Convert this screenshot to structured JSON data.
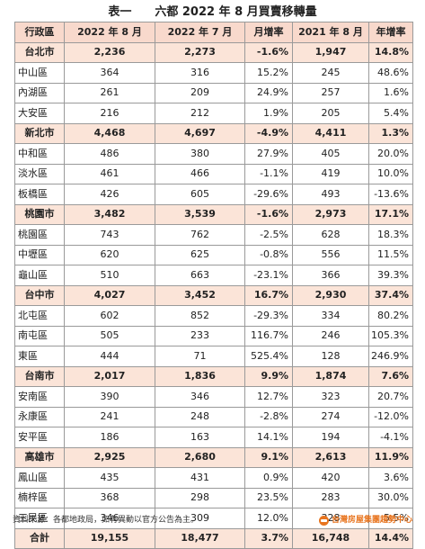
{
  "title": "表一　　六都 2022 年 8 月買賣移轉量",
  "columns": [
    "行政區",
    "2022 年 8 月",
    "2022 年 7 月",
    "月增率",
    "2021 年 8 月",
    "年增率"
  ],
  "rows": [
    {
      "region": "台北市",
      "aug2022": "2,236",
      "jul2022": "2,273",
      "mom": "-1.6%",
      "aug2021": "1,947",
      "yoy": "14.8%",
      "city": true
    },
    {
      "region": "中山區",
      "aug2022": "364",
      "jul2022": "316",
      "mom": "15.2%",
      "aug2021": "245",
      "yoy": "48.6%",
      "city": false
    },
    {
      "region": "內湖區",
      "aug2022": "261",
      "jul2022": "209",
      "mom": "24.9%",
      "aug2021": "257",
      "yoy": "1.6%",
      "city": false
    },
    {
      "region": "大安區",
      "aug2022": "216",
      "jul2022": "212",
      "mom": "1.9%",
      "aug2021": "205",
      "yoy": "5.4%",
      "city": false
    },
    {
      "region": "新北市",
      "aug2022": "4,468",
      "jul2022": "4,697",
      "mom": "-4.9%",
      "aug2021": "4,411",
      "yoy": "1.3%",
      "city": true
    },
    {
      "region": "中和區",
      "aug2022": "486",
      "jul2022": "380",
      "mom": "27.9%",
      "aug2021": "405",
      "yoy": "20.0%",
      "city": false
    },
    {
      "region": "淡水區",
      "aug2022": "461",
      "jul2022": "466",
      "mom": "-1.1%",
      "aug2021": "419",
      "yoy": "10.0%",
      "city": false
    },
    {
      "region": "板橋區",
      "aug2022": "426",
      "jul2022": "605",
      "mom": "-29.6%",
      "aug2021": "493",
      "yoy": "-13.6%",
      "city": false
    },
    {
      "region": "桃園市",
      "aug2022": "3,482",
      "jul2022": "3,539",
      "mom": "-1.6%",
      "aug2021": "2,973",
      "yoy": "17.1%",
      "city": true
    },
    {
      "region": "桃園區",
      "aug2022": "743",
      "jul2022": "762",
      "mom": "-2.5%",
      "aug2021": "628",
      "yoy": "18.3%",
      "city": false
    },
    {
      "region": "中壢區",
      "aug2022": "620",
      "jul2022": "625",
      "mom": "-0.8%",
      "aug2021": "556",
      "yoy": "11.5%",
      "city": false
    },
    {
      "region": "龜山區",
      "aug2022": "510",
      "jul2022": "663",
      "mom": "-23.1%",
      "aug2021": "366",
      "yoy": "39.3%",
      "city": false
    },
    {
      "region": "台中市",
      "aug2022": "4,027",
      "jul2022": "3,452",
      "mom": "16.7%",
      "aug2021": "2,930",
      "yoy": "37.4%",
      "city": true
    },
    {
      "region": "北屯區",
      "aug2022": "602",
      "jul2022": "852",
      "mom": "-29.3%",
      "aug2021": "334",
      "yoy": "80.2%",
      "city": false
    },
    {
      "region": "南屯區",
      "aug2022": "505",
      "jul2022": "233",
      "mom": "116.7%",
      "aug2021": "246",
      "yoy": "105.3%",
      "city": false
    },
    {
      "region": "東區",
      "aug2022": "444",
      "jul2022": "71",
      "mom": "525.4%",
      "aug2021": "128",
      "yoy": "246.9%",
      "city": false
    },
    {
      "region": "台南市",
      "aug2022": "2,017",
      "jul2022": "1,836",
      "mom": "9.9%",
      "aug2021": "1,874",
      "yoy": "7.6%",
      "city": true
    },
    {
      "region": "安南區",
      "aug2022": "390",
      "jul2022": "346",
      "mom": "12.7%",
      "aug2021": "323",
      "yoy": "20.7%",
      "city": false
    },
    {
      "region": "永康區",
      "aug2022": "241",
      "jul2022": "248",
      "mom": "-2.8%",
      "aug2021": "274",
      "yoy": "-12.0%",
      "city": false
    },
    {
      "region": "安平區",
      "aug2022": "186",
      "jul2022": "163",
      "mom": "14.1%",
      "aug2021": "194",
      "yoy": "-4.1%",
      "city": false
    },
    {
      "region": "高雄市",
      "aug2022": "2,925",
      "jul2022": "2,680",
      "mom": "9.1%",
      "aug2021": "2,613",
      "yoy": "11.9%",
      "city": true
    },
    {
      "region": "鳳山區",
      "aug2022": "435",
      "jul2022": "431",
      "mom": "0.9%",
      "aug2021": "420",
      "yoy": "3.6%",
      "city": false
    },
    {
      "region": "楠梓區",
      "aug2022": "368",
      "jul2022": "298",
      "mom": "23.5%",
      "aug2021": "283",
      "yoy": "30.0%",
      "city": false
    },
    {
      "region": "三民區",
      "aug2022": "346",
      "jul2022": "309",
      "mom": "12.0%",
      "aug2021": "328",
      "yoy": "5.5%",
      "city": false
    }
  ],
  "total": {
    "label": "合計",
    "aug2022": "19,155",
    "jul2022": "18,477",
    "mom": "3.7%",
    "aug2021": "16,748",
    "yoy": "14.4%"
  },
  "footer": {
    "source": "資料來源：各都地政局，如有異動以官方公告為主。",
    "brand": "台灣房屋集團趨勢中心",
    "brand_icon": "house-logo-icon"
  },
  "colors": {
    "header_bg": "#f8d9cc",
    "city_row_bg": "#fbe4d8",
    "border": "#9a9a9a",
    "brand": "#e8741e"
  }
}
